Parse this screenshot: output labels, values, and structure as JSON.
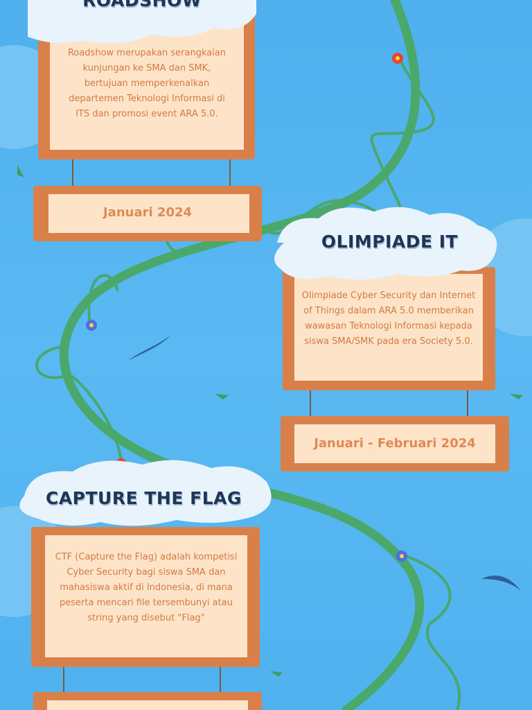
{
  "events": [
    {
      "title": "ROADSHOW",
      "description": "Roadshow merupakan serangkaian kunjungan ke SMA dan SMK, bertujuan memperkenalkan departemen Teknologi Informasi di ITS dan promosi event ARA 5.0.",
      "date": "Januari 2024"
    },
    {
      "title": "OLIMPIADE IT",
      "description": "Olimpiade Cyber Security dan Internet of Things dalam ARA 5.0 memberikan wawasan Teknologi Informasi kepada siswa SMA/SMK pada era Society 5.0.",
      "date": "Januari - Februari 2024"
    },
    {
      "title": "CAPTURE THE FLAG",
      "description": "CTF (Capture the Flag) adalah kompetisi Cyber Security bagi siswa SMA dan mahasiswa aktif di Indonesia, di mana peserta mencari file tersembunyi atau string yang disebut \"Flag\""
    }
  ]
}
